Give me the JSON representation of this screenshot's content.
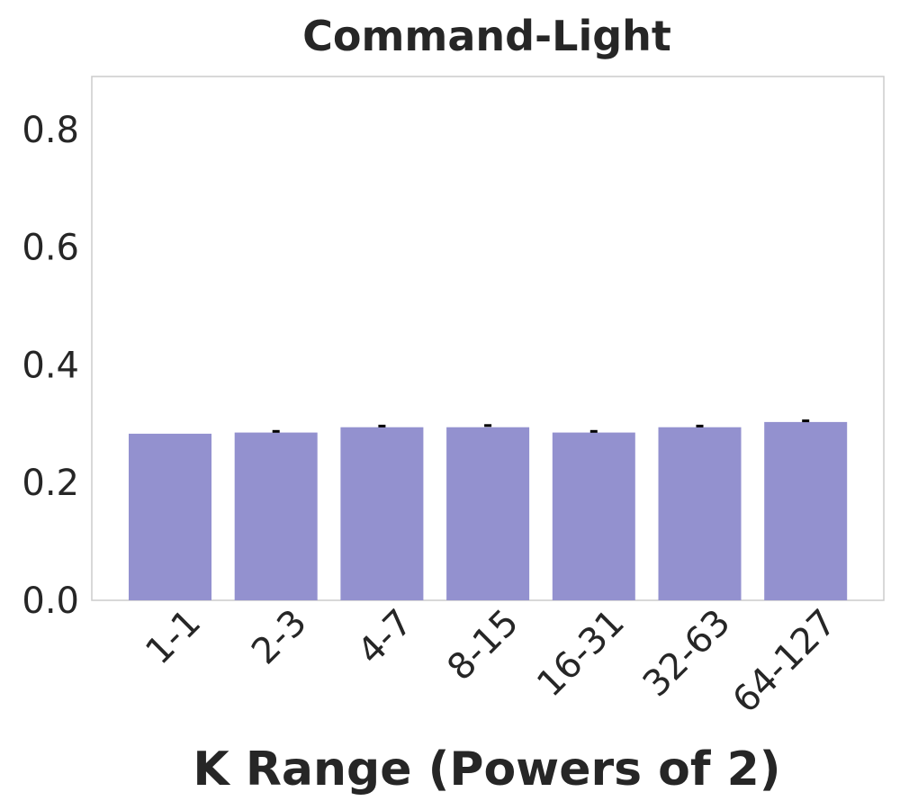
{
  "chart_data": {
    "type": "bar",
    "title": "Command-Light",
    "xlabel": "K Range (Powers of 2)",
    "ylabel": "",
    "categories": [
      "1-1",
      "2-3",
      "4-7",
      "8-15",
      "16-31",
      "32-63",
      "64-127"
    ],
    "values": [
      0.283,
      0.285,
      0.294,
      0.294,
      0.285,
      0.294,
      0.303
    ],
    "errors": [
      0.0,
      0.002,
      0.002,
      0.003,
      0.002,
      0.002,
      0.002
    ],
    "ylim": [
      0,
      0.89
    ],
    "yticks": [
      "0.0",
      "0.2",
      "0.4",
      "0.6",
      "0.8"
    ],
    "grid": false,
    "bar_color": "#9391cf",
    "error_color": "#000000"
  }
}
